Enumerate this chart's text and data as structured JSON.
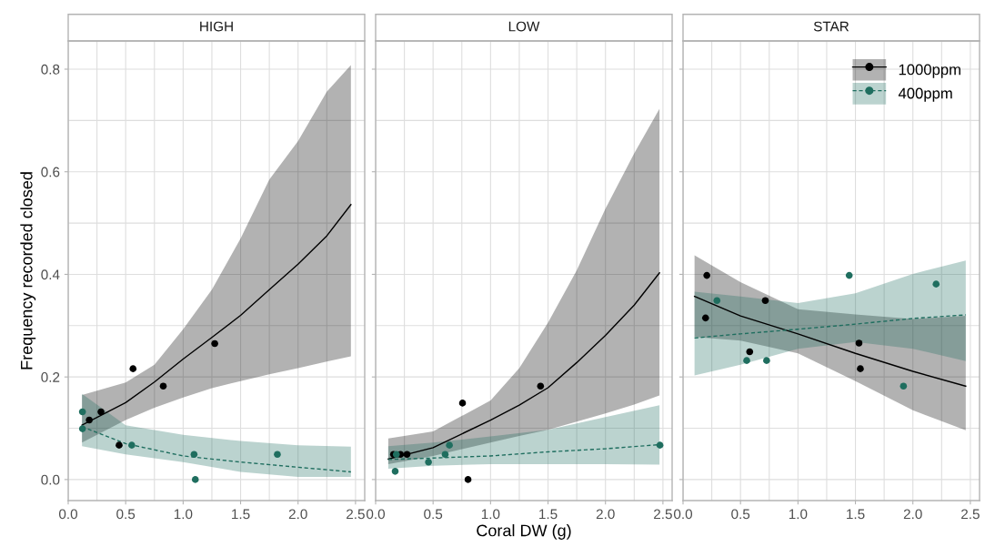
{
  "chart_data": [
    {
      "type": "scatter",
      "title": "HIGH",
      "ylabel": "Frequency recorded closed",
      "xlim": [
        0,
        2.58
      ],
      "xticks": [
        {
          "value": 0,
          "label": "0.0"
        },
        0.5,
        {
          "value": 1,
          "label": "1.0"
        },
        1.5,
        {
          "value": 2,
          "label": "2.0"
        },
        2.5
      ],
      "ylim": [
        -0.041,
        0.855
      ],
      "yticks": [
        {
          "value": 0,
          "label": "0.0"
        },
        0.2,
        0.4,
        0.6,
        0.8
      ],
      "grid": true,
      "legend": false,
      "series": [
        {
          "type": "line",
          "color": "#000000",
          "line_style": "solid",
          "x": [
            0.12,
            0.5,
            0.75,
            1.0,
            1.25,
            1.5,
            1.75,
            2.0,
            2.25,
            2.46
          ],
          "values": [
            0.106,
            0.15,
            0.19,
            0.235,
            0.277,
            0.32,
            0.37,
            0.42,
            0.475,
            0.536
          ],
          "lower": [
            0.072,
            0.116,
            0.14,
            0.16,
            0.178,
            0.192,
            0.205,
            0.217,
            0.23,
            0.24
          ],
          "upper": [
            0.165,
            0.189,
            0.224,
            0.293,
            0.37,
            0.47,
            0.585,
            0.66,
            0.756,
            0.808
          ]
        },
        {
          "color": "#000000",
          "marker": "circle",
          "x": [
            0.183,
            0.285,
            0.443,
            0.564,
            0.827,
            1.275
          ],
          "values": [
            0.116,
            0.132,
            0.067,
            0.216,
            0.182,
            0.265
          ]
        },
        {
          "type": "line",
          "color": "#1f6e5f",
          "line_style": "dashed",
          "x": [
            0.12,
            0.5,
            1.0,
            1.5,
            2.0,
            2.46
          ],
          "values": [
            0.103,
            0.07,
            0.046,
            0.034,
            0.024,
            0.015
          ],
          "lower": [
            0.065,
            0.049,
            0.034,
            0.015,
            0.005,
            0.005
          ],
          "upper": [
            0.167,
            0.106,
            0.087,
            0.075,
            0.067,
            0.064
          ]
        },
        {
          "color": "#1f6e5f",
          "marker": "circle",
          "x": [
            0.124,
            0.124,
            0.553,
            1.095,
            1.106,
            1.82
          ],
          "values": [
            0.132,
            0.099,
            0.067,
            0.049,
            0.0,
            0.049
          ]
        }
      ]
    },
    {
      "type": "scatter",
      "title": "LOW",
      "xlabel": "Coral DW (g)",
      "xlim": [
        0,
        2.58
      ],
      "xticks": [
        {
          "value": 0,
          "label": "0.0"
        },
        0.5,
        {
          "value": 1,
          "label": "1.0"
        },
        1.5,
        {
          "value": 2,
          "label": "2.0"
        },
        2.5
      ],
      "ylim": [
        -0.041,
        0.855
      ],
      "yticks": [
        0,
        0.2,
        0.4,
        0.6,
        0.8
      ],
      "tick_labels": "x",
      "grid": true,
      "legend": false,
      "series": [
        {
          "type": "line",
          "color": "#000000",
          "line_style": "solid",
          "x": [
            0.11,
            0.5,
            1.0,
            1.25,
            1.5,
            1.75,
            2.0,
            2.25,
            2.47
          ],
          "values": [
            0.04,
            0.062,
            0.116,
            0.145,
            0.179,
            0.228,
            0.281,
            0.34,
            0.403
          ],
          "lower": [
            0.03,
            0.046,
            0.072,
            0.085,
            0.097,
            0.113,
            0.129,
            0.146,
            0.164
          ],
          "upper": [
            0.08,
            0.094,
            0.154,
            0.217,
            0.306,
            0.408,
            0.528,
            0.636,
            0.723
          ]
        },
        {
          "color": "#000000",
          "marker": "circle",
          "x": [
            0.156,
            0.216,
            0.273,
            0.756,
            0.804,
            1.435
          ],
          "values": [
            0.049,
            0.049,
            0.049,
            0.149,
            0.0,
            0.182
          ]
        },
        {
          "type": "line",
          "color": "#1f6e5f",
          "line_style": "dashed",
          "x": [
            0.11,
            0.5,
            1.0,
            1.5,
            2.0,
            2.47
          ],
          "values": [
            0.039,
            0.042,
            0.046,
            0.054,
            0.06,
            0.068
          ],
          "lower": [
            0.021,
            0.027,
            0.03,
            0.03,
            0.03,
            0.029
          ],
          "upper": [
            0.065,
            0.072,
            0.084,
            0.097,
            0.122,
            0.145
          ]
        },
        {
          "color": "#1f6e5f",
          "marker": "circle",
          "x": [
            0.17,
            0.18,
            0.46,
            0.605,
            0.642,
            2.474
          ],
          "values": [
            0.016,
            0.049,
            0.034,
            0.049,
            0.067,
            0.067
          ]
        }
      ]
    },
    {
      "type": "scatter",
      "title": "STAR",
      "xlim": [
        0,
        2.58
      ],
      "xticks": [
        {
          "value": 0,
          "label": "0.0"
        },
        0.5,
        {
          "value": 1,
          "label": "1.0"
        },
        1.5,
        {
          "value": 2,
          "label": "2.0"
        },
        2.5
      ],
      "ylim": [
        -0.041,
        0.855
      ],
      "yticks": [
        0,
        0.2,
        0.4,
        0.6,
        0.8
      ],
      "tick_labels": "x",
      "grid": true,
      "legend": "top right",
      "series": [
        {
          "type": "line",
          "name": "1000ppm",
          "color": "#000000",
          "line_style": "solid",
          "x": [
            0.1,
            0.5,
            1.0,
            1.5,
            2.0,
            2.46
          ],
          "values": [
            0.357,
            0.319,
            0.284,
            0.246,
            0.211,
            0.182
          ],
          "lower": [
            0.278,
            0.271,
            0.246,
            0.192,
            0.135,
            0.096
          ],
          "upper": [
            0.437,
            0.385,
            0.332,
            0.322,
            0.313,
            0.319
          ]
        },
        {
          "color": "#000000",
          "marker": "circle",
          "x": [
            0.196,
            0.207,
            0.58,
            0.716,
            1.531,
            1.543
          ],
          "values": [
            0.315,
            0.398,
            0.249,
            0.349,
            0.266,
            0.216
          ]
        },
        {
          "type": "line",
          "name": "400ppm",
          "color": "#1f6e5f",
          "line_style": "dashed",
          "x": [
            0.1,
            0.5,
            1.0,
            1.5,
            2.0,
            2.46
          ],
          "values": [
            0.276,
            0.284,
            0.293,
            0.303,
            0.314,
            0.321
          ],
          "lower": [
            0.203,
            0.224,
            0.255,
            0.268,
            0.255,
            0.231
          ],
          "upper": [
            0.366,
            0.357,
            0.344,
            0.363,
            0.401,
            0.427
          ]
        },
        {
          "color": "#1f6e5f",
          "marker": "circle",
          "x": [
            0.295,
            0.554,
            0.727,
            1.446,
            1.918,
            2.202
          ],
          "values": [
            0.349,
            0.232,
            0.232,
            0.398,
            0.182,
            0.381
          ]
        }
      ]
    }
  ]
}
